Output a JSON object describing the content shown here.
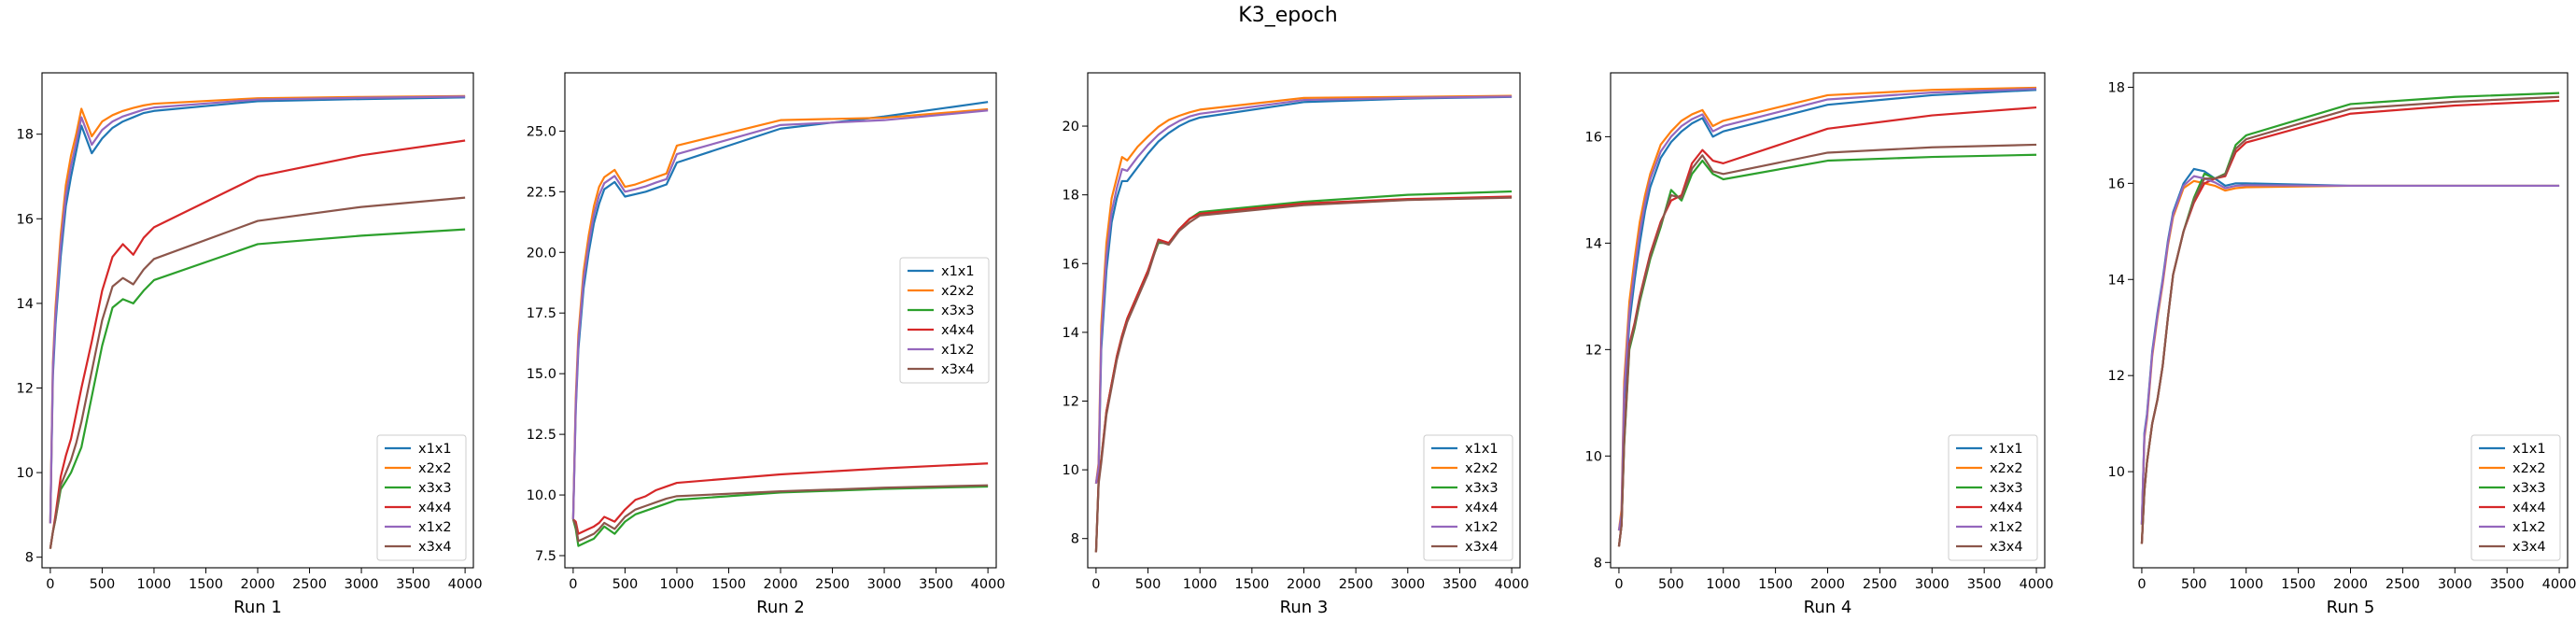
{
  "figure": {
    "title": "K3_epoch"
  },
  "colors": {
    "x1x1": "#1f77b4",
    "x2x2": "#ff7f0e",
    "x3x3": "#2ca02c",
    "x4x4": "#d62728",
    "x1x2": "#9467bd",
    "x3x4": "#8c564b"
  },
  "chart_data": [
    {
      "type": "line",
      "xlabel": "Run 1",
      "xlim": [
        -80,
        4080
      ],
      "ylim": [
        7.75,
        19.45
      ],
      "xticks": [
        0,
        500,
        1000,
        1500,
        2000,
        2500,
        3000,
        3500,
        4000
      ],
      "yticks": [
        8,
        10,
        12,
        14,
        16,
        18
      ],
      "ytick_labels": [
        "8",
        "10",
        "12",
        "14",
        "16",
        "18"
      ],
      "legend_position": "lower-right",
      "x": [
        0,
        25,
        50,
        100,
        150,
        200,
        250,
        300,
        400,
        500,
        600,
        700,
        800,
        900,
        1000,
        2000,
        3000,
        4000
      ],
      "series": [
        {
          "name": "x1x1",
          "values": [
            8.8,
            12.3,
            13.5,
            15.1,
            16.3,
            17.0,
            17.6,
            18.2,
            17.55,
            17.9,
            18.15,
            18.3,
            18.4,
            18.5,
            18.55,
            18.78,
            18.83,
            18.87
          ]
        },
        {
          "name": "x2x2",
          "values": [
            8.8,
            12.6,
            13.9,
            15.6,
            16.8,
            17.5,
            18.0,
            18.6,
            17.95,
            18.3,
            18.45,
            18.55,
            18.62,
            18.68,
            18.72,
            18.85,
            18.88,
            18.9
          ]
        },
        {
          "name": "x3x3",
          "values": [
            8.2,
            8.6,
            8.9,
            9.6,
            9.8,
            10.0,
            10.3,
            10.6,
            11.8,
            13.0,
            13.9,
            14.1,
            14.0,
            14.3,
            14.55,
            15.4,
            15.6,
            15.75
          ]
        },
        {
          "name": "x4x4",
          "values": [
            8.2,
            8.6,
            9.0,
            9.9,
            10.4,
            10.8,
            11.4,
            12.0,
            13.1,
            14.3,
            15.1,
            15.4,
            15.15,
            15.55,
            15.8,
            17.0,
            17.5,
            17.85
          ]
        },
        {
          "name": "x1x2",
          "values": [
            8.8,
            12.5,
            13.7,
            15.35,
            16.55,
            17.25,
            17.8,
            18.4,
            17.75,
            18.1,
            18.3,
            18.42,
            18.5,
            18.58,
            18.63,
            18.82,
            18.86,
            18.89
          ]
        },
        {
          "name": "x3x4",
          "values": [
            8.2,
            8.6,
            8.9,
            9.7,
            10.0,
            10.3,
            10.7,
            11.2,
            12.4,
            13.6,
            14.4,
            14.6,
            14.45,
            14.8,
            15.05,
            15.95,
            16.28,
            16.5
          ]
        }
      ]
    },
    {
      "type": "line",
      "xlabel": "Run 2",
      "xlim": [
        -80,
        4080
      ],
      "ylim": [
        7.0,
        27.4
      ],
      "xticks": [
        0,
        500,
        1000,
        1500,
        2000,
        2500,
        3000,
        3500,
        4000
      ],
      "yticks": [
        7.5,
        10.0,
        12.5,
        15.0,
        17.5,
        20.0,
        22.5,
        25.0
      ],
      "ytick_labels": [
        "7.5",
        "10.0",
        "12.5",
        "15.0",
        "17.5",
        "20.0",
        "22.5",
        "25.0"
      ],
      "legend_position": "center-right",
      "x": [
        0,
        25,
        50,
        100,
        150,
        200,
        250,
        300,
        400,
        500,
        600,
        700,
        800,
        900,
        1000,
        2000,
        3000,
        4000
      ],
      "series": [
        {
          "name": "x1x1",
          "values": [
            9.0,
            13.5,
            16.0,
            18.5,
            20.0,
            21.2,
            22.0,
            22.6,
            22.9,
            22.3,
            22.4,
            22.5,
            22.65,
            22.8,
            23.7,
            25.1,
            25.6,
            26.2
          ]
        },
        {
          "name": "x2x2",
          "values": [
            9.0,
            14.0,
            16.6,
            19.2,
            20.7,
            21.9,
            22.7,
            23.1,
            23.4,
            22.7,
            22.8,
            22.95,
            23.1,
            23.25,
            24.4,
            25.45,
            25.55,
            25.9
          ]
        },
        {
          "name": "x3x3",
          "values": [
            9.0,
            8.6,
            7.9,
            8.0,
            8.1,
            8.2,
            8.45,
            8.7,
            8.4,
            8.9,
            9.2,
            9.35,
            9.5,
            9.65,
            9.8,
            10.1,
            10.25,
            10.35
          ]
        },
        {
          "name": "x4x4",
          "values": [
            9.0,
            8.9,
            8.4,
            8.5,
            8.6,
            8.7,
            8.85,
            9.1,
            8.9,
            9.4,
            9.8,
            9.95,
            10.2,
            10.35,
            10.5,
            10.85,
            11.1,
            11.3
          ]
        },
        {
          "name": "x1x2",
          "values": [
            9.0,
            13.7,
            16.3,
            18.85,
            20.35,
            21.55,
            22.35,
            22.85,
            23.15,
            22.5,
            22.6,
            22.72,
            22.88,
            23.02,
            24.05,
            25.25,
            25.45,
            25.85
          ]
        },
        {
          "name": "x3x4",
          "values": [
            9.0,
            8.75,
            8.1,
            8.2,
            8.3,
            8.4,
            8.6,
            8.85,
            8.6,
            9.1,
            9.4,
            9.55,
            9.7,
            9.85,
            9.95,
            10.15,
            10.3,
            10.4
          ]
        }
      ]
    },
    {
      "type": "line",
      "xlabel": "Run 3",
      "xlim": [
        -80,
        4080
      ],
      "ylim": [
        7.15,
        21.55
      ],
      "xticks": [
        0,
        500,
        1000,
        1500,
        2000,
        2500,
        3000,
        3500,
        4000
      ],
      "yticks": [
        8,
        10,
        12,
        14,
        16,
        18,
        20
      ],
      "ytick_labels": [
        "8",
        "10",
        "12",
        "14",
        "16",
        "18",
        "20"
      ],
      "legend_position": "lower-right",
      "x": [
        0,
        25,
        50,
        100,
        150,
        200,
        250,
        300,
        400,
        500,
        600,
        700,
        800,
        900,
        1000,
        2000,
        3000,
        4000
      ],
      "series": [
        {
          "name": "x1x1",
          "values": [
            9.6,
            10.0,
            13.5,
            15.8,
            17.2,
            17.9,
            18.4,
            18.4,
            18.8,
            19.2,
            19.55,
            19.8,
            20.0,
            20.15,
            20.25,
            20.7,
            20.8,
            20.85
          ]
        },
        {
          "name": "x2x2",
          "values": [
            9.6,
            10.2,
            14.2,
            16.6,
            17.9,
            18.5,
            19.1,
            19.0,
            19.4,
            19.7,
            19.98,
            20.18,
            20.3,
            20.4,
            20.48,
            20.82,
            20.85,
            20.88
          ]
        },
        {
          "name": "x3x3",
          "values": [
            7.6,
            9.7,
            10.3,
            11.7,
            12.5,
            13.3,
            13.9,
            14.4,
            15.1,
            15.8,
            16.6,
            16.6,
            17.0,
            17.3,
            17.5,
            17.8,
            18.0,
            18.1
          ]
        },
        {
          "name": "x4x4",
          "values": [
            7.6,
            9.7,
            10.3,
            11.7,
            12.5,
            13.3,
            13.9,
            14.4,
            15.1,
            15.8,
            16.7,
            16.6,
            17.0,
            17.3,
            17.45,
            17.75,
            17.88,
            17.95
          ]
        },
        {
          "name": "x1x2",
          "values": [
            9.6,
            10.1,
            13.8,
            16.2,
            17.5,
            18.2,
            18.75,
            18.7,
            19.1,
            19.45,
            19.75,
            19.98,
            20.15,
            20.28,
            20.36,
            20.76,
            20.82,
            20.86
          ]
        },
        {
          "name": "x3x4",
          "values": [
            7.6,
            9.6,
            10.2,
            11.6,
            12.4,
            13.2,
            13.8,
            14.3,
            15.0,
            15.7,
            16.65,
            16.55,
            16.95,
            17.2,
            17.4,
            17.7,
            17.85,
            17.92
          ]
        }
      ]
    },
    {
      "type": "line",
      "xlabel": "Run 4",
      "xlim": [
        -80,
        4080
      ],
      "ylim": [
        7.9,
        17.2
      ],
      "xticks": [
        0,
        500,
        1000,
        1500,
        2000,
        2500,
        3000,
        3500,
        4000
      ],
      "yticks": [
        8,
        10,
        12,
        14,
        16
      ],
      "ytick_labels": [
        "8",
        "10",
        "12",
        "14",
        "16"
      ],
      "legend_position": "lower-right",
      "x": [
        0,
        25,
        50,
        100,
        150,
        200,
        250,
        300,
        400,
        500,
        600,
        700,
        800,
        900,
        1000,
        2000,
        3000,
        4000
      ],
      "series": [
        {
          "name": "x1x1",
          "values": [
            8.6,
            8.8,
            11.0,
            12.5,
            13.3,
            14.0,
            14.6,
            15.05,
            15.6,
            15.9,
            16.1,
            16.25,
            16.35,
            16.0,
            16.1,
            16.6,
            16.78,
            16.88
          ]
        },
        {
          "name": "x2x2",
          "values": [
            8.6,
            9.0,
            11.4,
            12.9,
            13.7,
            14.4,
            14.9,
            15.3,
            15.85,
            16.1,
            16.3,
            16.42,
            16.5,
            16.2,
            16.3,
            16.78,
            16.88,
            16.92
          ]
        },
        {
          "name": "x3x3",
          "values": [
            8.3,
            8.7,
            10.2,
            12.0,
            12.4,
            12.9,
            13.3,
            13.7,
            14.3,
            15.0,
            14.8,
            15.3,
            15.55,
            15.3,
            15.2,
            15.55,
            15.62,
            15.66
          ]
        },
        {
          "name": "x4x4",
          "values": [
            8.3,
            8.7,
            10.3,
            12.1,
            12.5,
            13.0,
            13.4,
            13.8,
            14.4,
            14.8,
            14.9,
            15.5,
            15.75,
            15.55,
            15.5,
            16.15,
            16.4,
            16.55
          ]
        },
        {
          "name": "x1x2",
          "values": [
            8.6,
            8.9,
            11.2,
            12.7,
            13.5,
            14.2,
            14.75,
            15.2,
            15.72,
            16.0,
            16.2,
            16.33,
            16.42,
            16.1,
            16.2,
            16.7,
            16.83,
            16.9
          ]
        },
        {
          "name": "x3x4",
          "values": [
            8.3,
            8.7,
            10.25,
            12.05,
            12.45,
            12.95,
            13.35,
            13.75,
            14.35,
            14.9,
            14.85,
            15.4,
            15.65,
            15.35,
            15.3,
            15.7,
            15.8,
            15.85
          ]
        }
      ]
    },
    {
      "type": "line",
      "xlabel": "Run 5",
      "xlim": [
        -80,
        4080
      ],
      "ylim": [
        8.0,
        18.3
      ],
      "xticks": [
        0,
        500,
        1000,
        1500,
        2000,
        2500,
        3000,
        3500,
        4000
      ],
      "yticks": [
        10,
        12,
        14,
        16,
        18
      ],
      "ytick_labels": [
        "10",
        "12",
        "14",
        "16",
        "18"
      ],
      "legend_position": "lower-right",
      "x": [
        0,
        25,
        50,
        100,
        150,
        200,
        250,
        300,
        400,
        500,
        600,
        700,
        800,
        900,
        1000,
        2000,
        3000,
        4000
      ],
      "series": [
        {
          "name": "x1x1",
          "values": [
            8.9,
            10.8,
            11.2,
            12.5,
            13.3,
            14.0,
            14.8,
            15.4,
            16.0,
            16.3,
            16.25,
            16.1,
            15.95,
            16.0,
            16.0,
            15.95,
            15.95,
            15.95
          ]
        },
        {
          "name": "x2x2",
          "values": [
            8.9,
            10.7,
            11.1,
            12.4,
            13.2,
            13.9,
            14.7,
            15.3,
            15.9,
            16.05,
            16.0,
            15.95,
            15.85,
            15.9,
            15.92,
            15.95,
            15.95,
            15.95
          ]
        },
        {
          "name": "x3x3",
          "values": [
            8.5,
            9.6,
            10.2,
            11.0,
            11.5,
            12.2,
            13.2,
            14.1,
            15.0,
            15.7,
            16.2,
            16.1,
            16.2,
            16.8,
            17.0,
            17.65,
            17.8,
            17.88
          ]
        },
        {
          "name": "x4x4",
          "values": [
            8.5,
            9.6,
            10.2,
            11.0,
            11.5,
            12.2,
            13.2,
            14.1,
            15.0,
            15.6,
            16.0,
            16.1,
            16.15,
            16.65,
            16.85,
            17.45,
            17.62,
            17.72
          ]
        },
        {
          "name": "x1x2",
          "values": [
            8.9,
            10.75,
            11.15,
            12.45,
            13.25,
            13.95,
            14.75,
            15.35,
            15.95,
            16.15,
            16.1,
            16.02,
            15.9,
            15.95,
            15.96,
            15.95,
            15.95,
            15.95
          ]
        },
        {
          "name": "x3x4",
          "values": [
            8.5,
            9.6,
            10.2,
            11.0,
            11.5,
            12.2,
            13.2,
            14.1,
            15.0,
            15.65,
            16.1,
            16.1,
            16.18,
            16.72,
            16.92,
            17.55,
            17.7,
            17.8
          ]
        }
      ]
    }
  ]
}
